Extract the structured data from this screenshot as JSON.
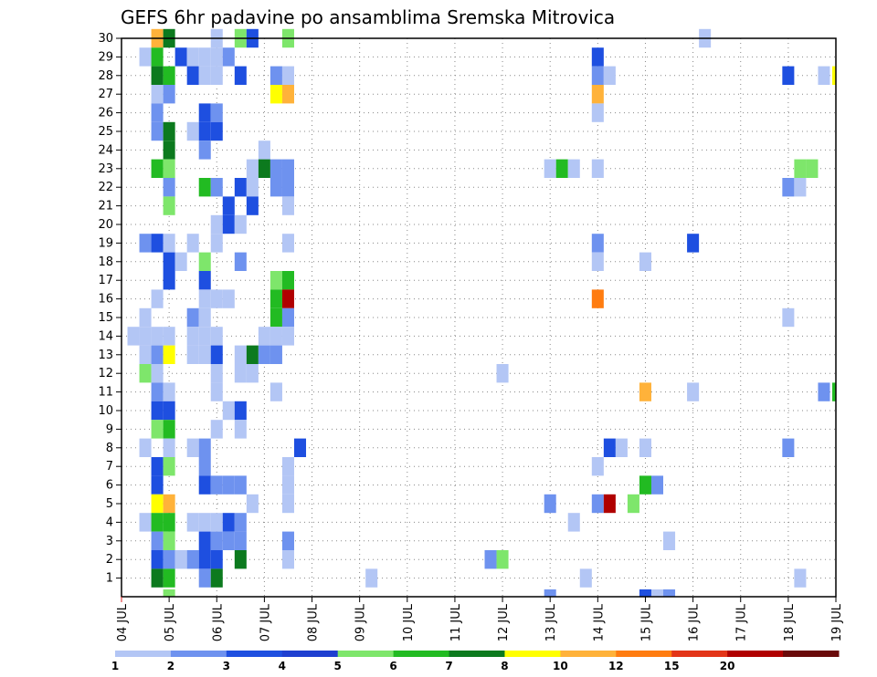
{
  "chart_data": {
    "type": "heatmap",
    "title": "GEFS 6hr padavine po ansamblima Sremska Mitrovica",
    "x_ticks": [
      "04 JUL",
      "05 JUL",
      "06 JUL",
      "07 JUL",
      "08 JUL",
      "09 JUL",
      "10 JUL",
      "11 JUL",
      "12 JUL",
      "13 JUL",
      "14 JUL",
      "15 JUL",
      "16 JUL",
      "17 JUL",
      "18 JUL",
      "19 JUL"
    ],
    "x_range_days": [
      0,
      15
    ],
    "x_step_days": 0.25,
    "y_ticks": [
      "1",
      "2",
      "3",
      "4",
      "5",
      "6",
      "7",
      "8",
      "9",
      "10",
      "11",
      "12",
      "13",
      "14",
      "15",
      "16",
      "17",
      "18",
      "19",
      "20",
      "21",
      "22",
      "23",
      "24",
      "25",
      "26",
      "27",
      "28",
      "29",
      "30"
    ],
    "y_range": [
      0,
      30
    ],
    "grid": true,
    "grid_style": "dotted",
    "colorbar": {
      "levels": [
        "1",
        "2",
        "3",
        "4",
        "5",
        "6",
        "7",
        "8",
        "10",
        "12",
        "15",
        "20",
        ""
      ],
      "colors": [
        "#b3c6f5",
        "#6e92ef",
        "#1e4fe0",
        "#1e3fd0",
        "#7ee66b",
        "#22bb22",
        "#0c7a1e",
        "#ffff00",
        "#ffb23a",
        "#ff7c10",
        "#e33518",
        "#b00000",
        "#6a0a0a"
      ]
    },
    "points": [
      {
        "day": 0.25,
        "member": 14,
        "level": 1
      },
      {
        "day": 0.5,
        "member": 29,
        "level": 1
      },
      {
        "day": 0.5,
        "member": 14,
        "level": 1
      },
      {
        "day": 0.5,
        "member": 13,
        "level": 1
      },
      {
        "day": 0.5,
        "member": 15,
        "level": 1
      },
      {
        "day": 0.5,
        "member": 12,
        "level": 5
      },
      {
        "day": 0.5,
        "member": 8,
        "level": 1
      },
      {
        "day": 0.5,
        "member": 4,
        "level": 1
      },
      {
        "day": 0.5,
        "member": 19,
        "level": 2
      },
      {
        "day": 0.75,
        "member": 30,
        "level": 9
      },
      {
        "day": 0.75,
        "member": 29,
        "level": 6
      },
      {
        "day": 0.75,
        "member": 28,
        "level": 7
      },
      {
        "day": 0.75,
        "member": 27,
        "level": 1
      },
      {
        "day": 0.75,
        "member": 26,
        "level": 2
      },
      {
        "day": 0.75,
        "member": 25,
        "level": 2
      },
      {
        "day": 0.75,
        "member": 23,
        "level": 6
      },
      {
        "day": 0.75,
        "member": 19,
        "level": 3
      },
      {
        "day": 0.75,
        "member": 16,
        "level": 1
      },
      {
        "day": 0.75,
        "member": 14,
        "level": 1
      },
      {
        "day": 0.75,
        "member": 13,
        "level": 2
      },
      {
        "day": 0.75,
        "member": 12,
        "level": 1
      },
      {
        "day": 0.75,
        "member": 11,
        "level": 2
      },
      {
        "day": 0.75,
        "member": 10,
        "level": 3
      },
      {
        "day": 0.75,
        "member": 9,
        "level": 5
      },
      {
        "day": 0.75,
        "member": 7,
        "level": 3
      },
      {
        "day": 0.75,
        "member": 6,
        "level": 3
      },
      {
        "day": 0.75,
        "member": 5,
        "level": 8
      },
      {
        "day": 0.75,
        "member": 4,
        "level": 6
      },
      {
        "day": 0.75,
        "member": 3,
        "level": 2
      },
      {
        "day": 0.75,
        "member": 2,
        "level": 3
      },
      {
        "day": 0.75,
        "member": 1,
        "level": 7
      },
      {
        "day": 1.0,
        "member": 30,
        "level": 7
      },
      {
        "day": 1.0,
        "member": 28,
        "level": 6
      },
      {
        "day": 1.0,
        "member": 27,
        "level": 2
      },
      {
        "day": 1.0,
        "member": 25,
        "level": 7
      },
      {
        "day": 1.0,
        "member": 24,
        "level": 7
      },
      {
        "day": 1.0,
        "member": 23,
        "level": 5
      },
      {
        "day": 1.0,
        "member": 22,
        "level": 2
      },
      {
        "day": 1.0,
        "member": 21,
        "level": 5
      },
      {
        "day": 1.0,
        "member": 19,
        "level": 1
      },
      {
        "day": 1.0,
        "member": 18,
        "level": 3
      },
      {
        "day": 1.0,
        "member": 17,
        "level": 3
      },
      {
        "day": 1.0,
        "member": 14,
        "level": 1
      },
      {
        "day": 1.0,
        "member": 13,
        "level": 8
      },
      {
        "day": 1.0,
        "member": 11,
        "level": 1
      },
      {
        "day": 1.0,
        "member": 10,
        "level": 3
      },
      {
        "day": 1.0,
        "member": 9,
        "level": 6
      },
      {
        "day": 1.0,
        "member": 8,
        "level": 1
      },
      {
        "day": 1.0,
        "member": 7,
        "level": 5
      },
      {
        "day": 1.0,
        "member": 5,
        "level": 9
      },
      {
        "day": 1.0,
        "member": 4,
        "level": 6
      },
      {
        "day": 1.0,
        "member": 3,
        "level": 5
      },
      {
        "day": 1.0,
        "member": 2,
        "level": 2
      },
      {
        "day": 1.0,
        "member": 1,
        "level": 6
      },
      {
        "day": 1.25,
        "member": 29,
        "level": 3
      },
      {
        "day": 1.25,
        "member": 18,
        "level": 1
      },
      {
        "day": 1.25,
        "member": 2,
        "level": 1
      },
      {
        "day": 1.5,
        "member": 29,
        "level": 1
      },
      {
        "day": 1.5,
        "member": 28,
        "level": 3
      },
      {
        "day": 1.5,
        "member": 25,
        "level": 1
      },
      {
        "day": 1.5,
        "member": 19,
        "level": 1
      },
      {
        "day": 1.5,
        "member": 15,
        "level": 2
      },
      {
        "day": 1.5,
        "member": 14,
        "level": 1
      },
      {
        "day": 1.5,
        "member": 13,
        "level": 1
      },
      {
        "day": 1.5,
        "member": 8,
        "level": 1
      },
      {
        "day": 1.5,
        "member": 4,
        "level": 1
      },
      {
        "day": 1.5,
        "member": 2,
        "level": 2
      },
      {
        "day": 1.75,
        "member": 29,
        "level": 1
      },
      {
        "day": 1.75,
        "member": 28,
        "level": 1
      },
      {
        "day": 1.75,
        "member": 26,
        "level": 3
      },
      {
        "day": 1.75,
        "member": 25,
        "level": 3
      },
      {
        "day": 1.75,
        "member": 24,
        "level": 2
      },
      {
        "day": 1.75,
        "member": 22,
        "level": 6
      },
      {
        "day": 1.75,
        "member": 18,
        "level": 5
      },
      {
        "day": 1.75,
        "member": 17,
        "level": 3
      },
      {
        "day": 1.75,
        "member": 16,
        "level": 1
      },
      {
        "day": 1.75,
        "member": 15,
        "level": 1
      },
      {
        "day": 1.75,
        "member": 14,
        "level": 1
      },
      {
        "day": 1.75,
        "member": 13,
        "level": 1
      },
      {
        "day": 1.75,
        "member": 8,
        "level": 2
      },
      {
        "day": 1.75,
        "member": 7,
        "level": 2
      },
      {
        "day": 1.75,
        "member": 6,
        "level": 3
      },
      {
        "day": 1.75,
        "member": 4,
        "level": 1
      },
      {
        "day": 1.75,
        "member": 3,
        "level": 3
      },
      {
        "day": 1.75,
        "member": 2,
        "level": 3
      },
      {
        "day": 1.75,
        "member": 1,
        "level": 2
      },
      {
        "day": 2.0,
        "member": 30,
        "level": 1
      },
      {
        "day": 2.0,
        "member": 29,
        "level": 1
      },
      {
        "day": 2.0,
        "member": 28,
        "level": 1
      },
      {
        "day": 2.0,
        "member": 26,
        "level": 2
      },
      {
        "day": 2.0,
        "member": 25,
        "level": 3
      },
      {
        "day": 2.0,
        "member": 22,
        "level": 2
      },
      {
        "day": 2.0,
        "member": 20,
        "level": 1
      },
      {
        "day": 2.0,
        "member": 19,
        "level": 1
      },
      {
        "day": 2.0,
        "member": 16,
        "level": 1
      },
      {
        "day": 2.0,
        "member": 14,
        "level": 1
      },
      {
        "day": 2.0,
        "member": 13,
        "level": 3
      },
      {
        "day": 2.0,
        "member": 12,
        "level": 1
      },
      {
        "day": 2.0,
        "member": 11,
        "level": 1
      },
      {
        "day": 2.0,
        "member": 9,
        "level": 1
      },
      {
        "day": 2.0,
        "member": 6,
        "level": 2
      },
      {
        "day": 2.0,
        "member": 4,
        "level": 1
      },
      {
        "day": 2.0,
        "member": 3,
        "level": 2
      },
      {
        "day": 2.0,
        "member": 2,
        "level": 3
      },
      {
        "day": 2.0,
        "member": 1,
        "level": 7
      },
      {
        "day": 2.25,
        "member": 29,
        "level": 2
      },
      {
        "day": 2.25,
        "member": 21,
        "level": 3
      },
      {
        "day": 2.25,
        "member": 20,
        "level": 3
      },
      {
        "day": 2.25,
        "member": 16,
        "level": 1
      },
      {
        "day": 2.25,
        "member": 10,
        "level": 1
      },
      {
        "day": 2.25,
        "member": 6,
        "level": 2
      },
      {
        "day": 2.25,
        "member": 4,
        "level": 3
      },
      {
        "day": 2.25,
        "member": 3,
        "level": 2
      },
      {
        "day": 2.5,
        "member": 30,
        "level": 5
      },
      {
        "day": 2.5,
        "member": 28,
        "level": 3
      },
      {
        "day": 2.5,
        "member": 22,
        "level": 3
      },
      {
        "day": 2.5,
        "member": 20,
        "level": 1
      },
      {
        "day": 2.5,
        "member": 18,
        "level": 2
      },
      {
        "day": 2.5,
        "member": 13,
        "level": 1
      },
      {
        "day": 2.5,
        "member": 12,
        "level": 1
      },
      {
        "day": 2.5,
        "member": 10,
        "level": 3
      },
      {
        "day": 2.5,
        "member": 9,
        "level": 1
      },
      {
        "day": 2.5,
        "member": 6,
        "level": 2
      },
      {
        "day": 2.5,
        "member": 4,
        "level": 2
      },
      {
        "day": 2.5,
        "member": 3,
        "level": 2
      },
      {
        "day": 2.5,
        "member": 2,
        "level": 7
      },
      {
        "day": 2.75,
        "member": 30,
        "level": 3
      },
      {
        "day": 2.75,
        "member": 23,
        "level": 1
      },
      {
        "day": 2.75,
        "member": 22,
        "level": 1
      },
      {
        "day": 2.75,
        "member": 21,
        "level": 3
      },
      {
        "day": 2.75,
        "member": 13,
        "level": 7
      },
      {
        "day": 2.75,
        "member": 12,
        "level": 1
      },
      {
        "day": 2.75,
        "member": 5,
        "level": 1
      },
      {
        "day": 3.0,
        "member": 24,
        "level": 1
      },
      {
        "day": 3.0,
        "member": 23,
        "level": 7
      },
      {
        "day": 3.0,
        "member": 14,
        "level": 1
      },
      {
        "day": 3.0,
        "member": 13,
        "level": 2
      },
      {
        "day": 3.25,
        "member": 28,
        "level": 2
      },
      {
        "day": 3.25,
        "member": 27,
        "level": 8
      },
      {
        "day": 3.25,
        "member": 23,
        "level": 2
      },
      {
        "day": 3.25,
        "member": 22,
        "level": 2
      },
      {
        "day": 3.25,
        "member": 17,
        "level": 5
      },
      {
        "day": 3.25,
        "member": 16,
        "level": 6
      },
      {
        "day": 3.25,
        "member": 15,
        "level": 6
      },
      {
        "day": 3.25,
        "member": 14,
        "level": 1
      },
      {
        "day": 3.25,
        "member": 13,
        "level": 2
      },
      {
        "day": 3.25,
        "member": 11,
        "level": 1
      },
      {
        "day": 3.5,
        "member": 30,
        "level": 5
      },
      {
        "day": 3.5,
        "member": 28,
        "level": 1
      },
      {
        "day": 3.5,
        "member": 27,
        "level": 9
      },
      {
        "day": 3.5,
        "member": 23,
        "level": 2
      },
      {
        "day": 3.5,
        "member": 22,
        "level": 2
      },
      {
        "day": 3.5,
        "member": 21,
        "level": 1
      },
      {
        "day": 3.5,
        "member": 19,
        "level": 1
      },
      {
        "day": 3.5,
        "member": 17,
        "level": 6
      },
      {
        "day": 3.5,
        "member": 16,
        "level": 12
      },
      {
        "day": 3.5,
        "member": 15,
        "level": 2
      },
      {
        "day": 3.5,
        "member": 14,
        "level": 1
      },
      {
        "day": 3.5,
        "member": 7,
        "level": 1
      },
      {
        "day": 3.5,
        "member": 6,
        "level": 1
      },
      {
        "day": 3.5,
        "member": 5,
        "level": 1
      },
      {
        "day": 3.5,
        "member": 3,
        "level": 2
      },
      {
        "day": 3.5,
        "member": 2,
        "level": 1
      },
      {
        "day": 3.75,
        "member": 8,
        "level": 3
      },
      {
        "day": 5.25,
        "member": 1,
        "level": 1
      },
      {
        "day": 7.75,
        "member": 2,
        "level": 2
      },
      {
        "day": 8.0,
        "member": 12,
        "level": 1
      },
      {
        "day": 8.0,
        "member": 2,
        "level": 5
      },
      {
        "day": 9.0,
        "member": 23,
        "level": 1
      },
      {
        "day": 9.0,
        "member": 5,
        "level": 2
      },
      {
        "day": 9.25,
        "member": 23,
        "level": 6
      },
      {
        "day": 9.5,
        "member": 23,
        "level": 1
      },
      {
        "day": 9.5,
        "member": 4,
        "level": 1
      },
      {
        "day": 9.75,
        "member": 1,
        "level": 1
      },
      {
        "day": 10.0,
        "member": 29,
        "level": 3
      },
      {
        "day": 10.0,
        "member": 28,
        "level": 2
      },
      {
        "day": 10.0,
        "member": 27,
        "level": 9
      },
      {
        "day": 10.0,
        "member": 26,
        "level": 1
      },
      {
        "day": 10.0,
        "member": 23,
        "level": 1
      },
      {
        "day": 10.0,
        "member": 19,
        "level": 2
      },
      {
        "day": 10.0,
        "member": 18,
        "level": 1
      },
      {
        "day": 10.0,
        "member": 16,
        "level": 10
      },
      {
        "day": 10.0,
        "member": 7,
        "level": 1
      },
      {
        "day": 10.0,
        "member": 5,
        "level": 2
      },
      {
        "day": 10.25,
        "member": 28,
        "level": 1
      },
      {
        "day": 10.25,
        "member": 8,
        "level": 3
      },
      {
        "day": 10.25,
        "member": 5,
        "level": 12
      },
      {
        "day": 10.5,
        "member": 8,
        "level": 1
      },
      {
        "day": 10.75,
        "member": 5,
        "level": 5
      },
      {
        "day": 11.0,
        "member": 18,
        "level": 1
      },
      {
        "day": 11.0,
        "member": 11,
        "level": 9
      },
      {
        "day": 11.0,
        "member": 8,
        "level": 1
      },
      {
        "day": 11.0,
        "member": 6,
        "level": 6
      },
      {
        "day": 11.25,
        "member": 6,
        "level": 2
      },
      {
        "day": 11.5,
        "member": 3,
        "level": 1
      },
      {
        "day": 12.0,
        "member": 11,
        "level": 1
      },
      {
        "day": 12.0,
        "member": 19,
        "level": 3
      },
      {
        "day": 12.25,
        "member": 30,
        "level": 1
      },
      {
        "day": 14.0,
        "member": 28,
        "level": 3
      },
      {
        "day": 14.0,
        "member": 15,
        "level": 1
      },
      {
        "day": 14.0,
        "member": 8,
        "level": 2
      },
      {
        "day": 14.0,
        "member": 22,
        "level": 2
      },
      {
        "day": 14.25,
        "member": 23,
        "level": 5
      },
      {
        "day": 14.25,
        "member": 22,
        "level": 1
      },
      {
        "day": 14.25,
        "member": 1,
        "level": 1
      },
      {
        "day": 14.5,
        "member": 23,
        "level": 5
      },
      {
        "day": 14.75,
        "member": 28,
        "level": 1
      },
      {
        "day": 14.75,
        "member": 11,
        "level": 2
      }
    ],
    "bottom_row_marks": [
      {
        "day": 9.0,
        "level": 2
      },
      {
        "day": 11.0,
        "level": 3
      },
      {
        "day": 11.25,
        "level": 1
      },
      {
        "day": 11.5,
        "level": 2
      },
      {
        "day": 1.0,
        "level": 5
      }
    ],
    "edge_marks": [
      {
        "day": 15.0,
        "member": 28,
        "level": 8
      },
      {
        "day": 15.0,
        "member": 11,
        "level": 6
      }
    ]
  }
}
